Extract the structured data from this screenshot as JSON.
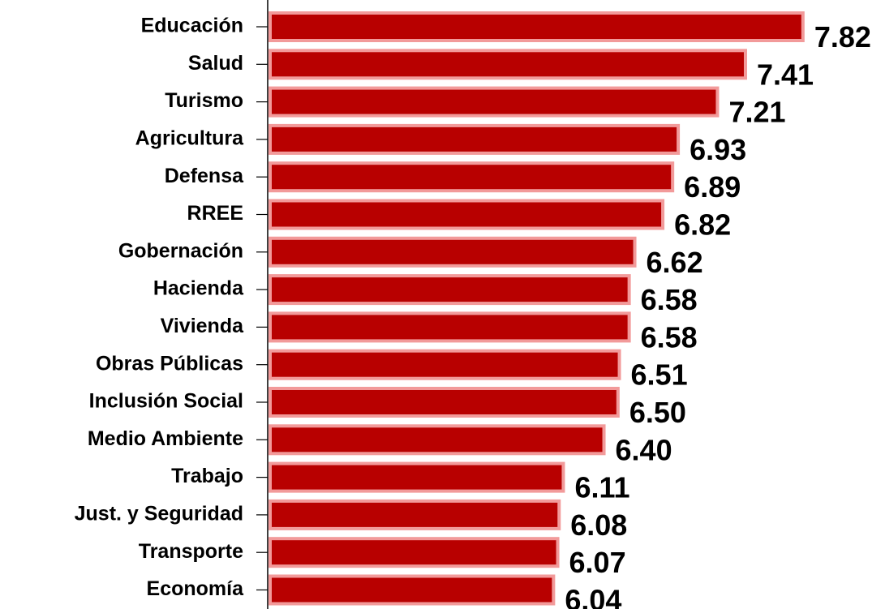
{
  "chart_data": {
    "type": "barh",
    "categories": [
      "Educación",
      "Salud",
      "Turismo",
      "Agricultura",
      "Defensa",
      "RREE",
      "Gobernación",
      "Hacienda",
      "Vivienda",
      "Obras Públicas",
      "Inclusión Social",
      "Medio Ambiente",
      "Trabajo",
      "Just. y Seguridad",
      "Transporte",
      "Economía"
    ],
    "values": [
      7.82,
      7.41,
      7.21,
      6.93,
      6.89,
      6.82,
      6.62,
      6.58,
      6.58,
      6.51,
      6.5,
      6.4,
      6.11,
      6.08,
      6.07,
      6.04
    ],
    "value_labels": [
      "7.82",
      "7.41",
      "7.21",
      "6.93",
      "6.89",
      "6.82",
      "6.62",
      "6.58",
      "6.58",
      "6.51",
      "6.50",
      "6.40",
      "6.11",
      "6.08",
      "6.07",
      "6.04"
    ],
    "color": "#b80000",
    "edge_color": "#f29a9a",
    "xlim": [
      4,
      8.4
    ]
  }
}
